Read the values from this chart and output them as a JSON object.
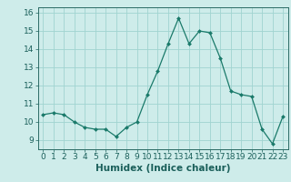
{
  "x": [
    0,
    1,
    2,
    3,
    4,
    5,
    6,
    7,
    8,
    9,
    10,
    11,
    12,
    13,
    14,
    15,
    16,
    17,
    18,
    19,
    20,
    21,
    22,
    23
  ],
  "y": [
    10.4,
    10.5,
    10.4,
    10.0,
    9.7,
    9.6,
    9.6,
    9.2,
    9.7,
    10.0,
    11.5,
    12.8,
    14.3,
    15.7,
    14.3,
    15.0,
    14.9,
    13.5,
    11.7,
    11.5,
    11.4,
    9.6,
    8.8,
    10.3
  ],
  "line_color": "#1a7a6a",
  "marker": "D",
  "marker_size": 2.0,
  "bg_color": "#ceecea",
  "grid_color": "#a0d4d0",
  "xlabel": "Humidex (Indice chaleur)",
  "xlim": [
    -0.5,
    23.5
  ],
  "ylim": [
    8.5,
    16.3
  ],
  "yticks": [
    9,
    10,
    11,
    12,
    13,
    14,
    15,
    16
  ],
  "xticks": [
    0,
    1,
    2,
    3,
    4,
    5,
    6,
    7,
    8,
    9,
    10,
    11,
    12,
    13,
    14,
    15,
    16,
    17,
    18,
    19,
    20,
    21,
    22,
    23
  ],
  "xlabel_fontsize": 7.5,
  "tick_fontsize": 6.5,
  "axis_color": "#2a6a64",
  "tick_color": "#1a5f5a"
}
